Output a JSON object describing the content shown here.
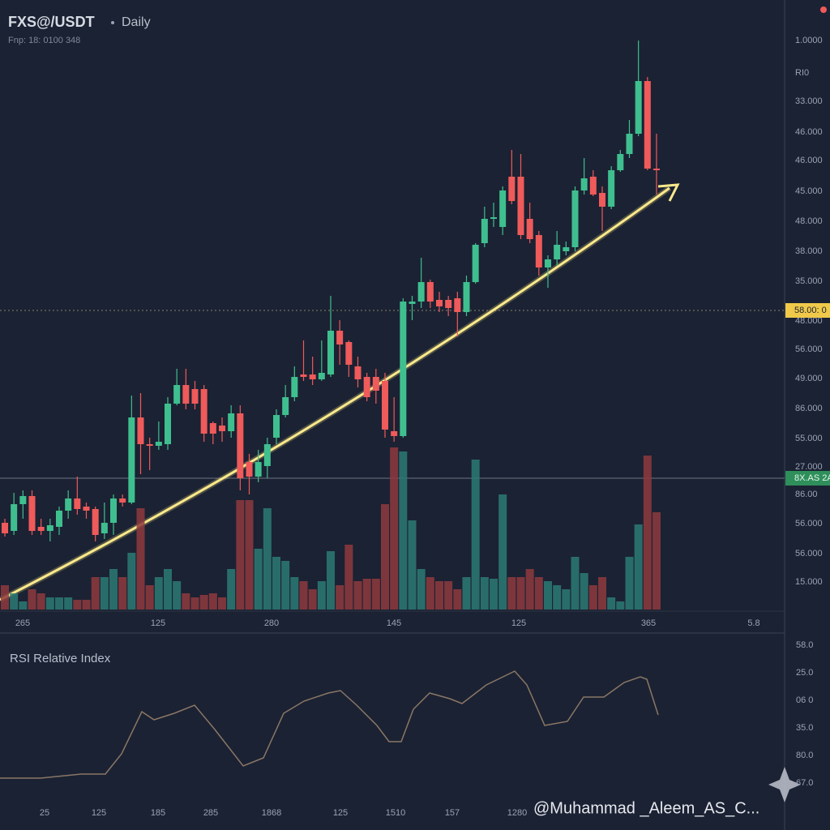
{
  "header": {
    "symbol": "FXS@/USDT",
    "interval": "Daily",
    "info": "Fnp: 18: 0100 348"
  },
  "chart_data": [
    {
      "type": "candlestick",
      "open": [
        115,
        105,
        138,
        148,
        110,
        105,
        110,
        130,
        145,
        135,
        132,
        102,
        115,
        145,
        140,
        245,
        212,
        210,
        212,
        262,
        285,
        280,
        280,
        238,
        235,
        228,
        250,
        190,
        172,
        185,
        220,
        248,
        270,
        298,
        298,
        292,
        298,
        352,
        338,
        308,
        295,
        295,
        290,
        228,
        222,
        385,
        388,
        412,
        390,
        390,
        392,
        375,
        412,
        460,
        490,
        480,
        542,
        542,
        490,
        470,
        430,
        440,
        450,
        455,
        525,
        542,
        522,
        505,
        550,
        570,
        595,
        660,
        552
      ],
      "high": [
        120,
        152,
        155,
        155,
        120,
        120,
        135,
        155,
        172,
        140,
        135,
        140,
        150,
        150,
        272,
        275,
        220,
        240,
        270,
        305,
        305,
        290,
        285,
        240,
        245,
        260,
        260,
        200,
        205,
        220,
        255,
        285,
        308,
        340,
        320,
        340,
        395,
        365,
        340,
        320,
        300,
        305,
        300,
        270,
        392,
        395,
        442,
        415,
        400,
        395,
        400,
        420,
        460,
        505,
        510,
        530,
        575,
        570,
        510,
        475,
        445,
        475,
        462,
        530,
        565,
        550,
        530,
        555,
        575,
        612,
        710,
        665,
        595
      ],
      "low": [
        98,
        100,
        120,
        100,
        100,
        92,
        100,
        120,
        125,
        120,
        92,
        95,
        100,
        135,
        138,
        175,
        180,
        205,
        205,
        260,
        255,
        255,
        215,
        212,
        215,
        220,
        155,
        150,
        165,
        170,
        212,
        245,
        265,
        290,
        285,
        290,
        295,
        310,
        295,
        282,
        265,
        262,
        220,
        215,
        220,
        365,
        380,
        380,
        375,
        370,
        345,
        370,
        410,
        455,
        480,
        470,
        508,
        465,
        460,
        420,
        405,
        432,
        445,
        450,
        520,
        518,
        475,
        502,
        548,
        565,
        592,
        550,
        520
      ],
      "close": [
        102,
        138,
        148,
        105,
        105,
        112,
        130,
        145,
        132,
        130,
        100,
        115,
        145,
        140,
        245,
        212,
        210,
        215,
        262,
        285,
        262,
        262,
        225,
        225,
        228,
        250,
        170,
        172,
        190,
        212,
        248,
        270,
        295,
        295,
        292,
        300,
        352,
        335,
        310,
        292,
        270,
        278,
        230,
        222,
        388,
        388,
        412,
        388,
        382,
        380,
        375,
        412,
        458,
        490,
        492,
        525,
        512,
        470,
        465,
        430,
        440,
        458,
        455,
        525,
        540,
        520,
        505,
        550,
        570,
        595,
        660,
        552,
        550
      ],
      "up_color": "#3fbf8f",
      "down_color": "#ef5a5a",
      "ylim": [
        0,
        720
      ],
      "axis_labels": [
        "1.0000",
        "RI0",
        "33.000",
        "46.000",
        "46.000",
        "45.000",
        "48.000",
        "38.000",
        "35.000",
        "48.000",
        "56.000",
        "49.000",
        "86.000",
        "55.000",
        "27.000",
        "86.00",
        "56.000",
        "56.000",
        "15.000"
      ],
      "x_labels": [
        "265",
        "125",
        "280",
        "145",
        "125",
        "365",
        "5.8"
      ],
      "price_line_labels": [
        "58.00: 0",
        "8X.AS 2A"
      ]
    },
    {
      "type": "bar",
      "values": [
        30,
        20,
        10,
        25,
        20,
        15,
        15,
        15,
        12,
        12,
        40,
        40,
        50,
        40,
        70,
        125,
        30,
        40,
        50,
        35,
        20,
        15,
        18,
        20,
        15,
        50,
        135,
        135,
        75,
        125,
        65,
        60,
        40,
        35,
        25,
        35,
        72,
        30,
        80,
        35,
        38,
        38,
        130,
        200,
        195,
        110,
        50,
        40,
        35,
        35,
        25,
        40,
        185,
        40,
        38,
        142,
        40,
        40,
        50,
        40,
        35,
        30,
        25,
        65,
        45,
        30,
        40,
        15,
        10,
        65,
        105,
        190,
        120
      ],
      "ylim": [
        0,
        200
      ],
      "up_color": "#2b7a74",
      "down_color": "#8e3a3e"
    },
    {
      "type": "line",
      "title": "RSI Relative Index",
      "x": [
        0,
        50,
        100,
        130,
        150,
        175,
        190,
        215,
        240,
        265,
        300,
        325,
        350,
        375,
        405,
        420,
        440,
        465,
        480,
        495,
        510,
        530,
        555,
        570,
        600,
        635,
        650,
        672,
        700,
        720,
        745,
        770,
        790,
        798,
        812
      ],
      "values": [
        40,
        40,
        45,
        45,
        70,
        122,
        112,
        120,
        130,
        100,
        55,
        65,
        120,
        135,
        145,
        148,
        130,
        105,
        85,
        85,
        125,
        145,
        138,
        132,
        155,
        172,
        155,
        105,
        110,
        140,
        140,
        158,
        165,
        162,
        118
      ],
      "xlim": [
        0,
        812
      ],
      "ylim": [
        0,
        200
      ],
      "color": "#8a7766",
      "axis_labels": [
        "58.0",
        "25.0",
        "06 0",
        "35.0",
        "80.0",
        "67.0"
      ],
      "x_labels": [
        "25",
        "125",
        "185",
        "285",
        "1868",
        "125",
        "1510",
        "157",
        "1280"
      ]
    }
  ],
  "watermark": "@Muhammad _Aleem_AS_C..."
}
